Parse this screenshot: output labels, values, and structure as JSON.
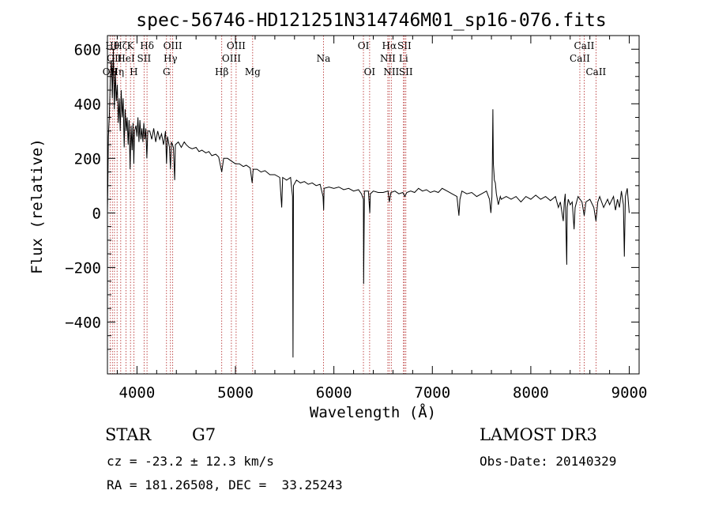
{
  "chart_data": {
    "type": "line",
    "title": "spec-56746-HD121251N314746M01_sp16-076.fits",
    "xlabel": "Wavelength (Å)",
    "ylabel": "Flux (relative)",
    "xlim": [
      3700,
      9100
    ],
    "ylim": [
      -590,
      650
    ],
    "xticks": [
      4000,
      5000,
      6000,
      7000,
      8000,
      9000
    ],
    "yticks": [
      -400,
      -200,
      0,
      200,
      400,
      600
    ],
    "grid": false,
    "series": [
      {
        "points": [
          [
            3700,
            0
          ],
          [
            3705,
            120
          ],
          [
            3710,
            280
          ],
          [
            3720,
            360
          ],
          [
            3730,
            500
          ],
          [
            3740,
            560
          ],
          [
            3750,
            420
          ],
          [
            3760,
            600
          ],
          [
            3770,
            380
          ],
          [
            3780,
            520
          ],
          [
            3790,
            410
          ],
          [
            3800,
            470
          ],
          [
            3810,
            330
          ],
          [
            3820,
            420
          ],
          [
            3830,
            300
          ],
          [
            3840,
            450
          ],
          [
            3850,
            350
          ],
          [
            3860,
            420
          ],
          [
            3870,
            240
          ],
          [
            3880,
            380
          ],
          [
            3890,
            300
          ],
          [
            3900,
            350
          ],
          [
            3910,
            250
          ],
          [
            3920,
            340
          ],
          [
            3930,
            160
          ],
          [
            3940,
            320
          ],
          [
            3950,
            230
          ],
          [
            3960,
            330
          ],
          [
            3968,
            180
          ],
          [
            3975,
            300
          ],
          [
            3990,
            320
          ],
          [
            4000,
            280
          ],
          [
            4010,
            350
          ],
          [
            4020,
            260
          ],
          [
            4030,
            340
          ],
          [
            4040,
            270
          ],
          [
            4050,
            310
          ],
          [
            4060,
            260
          ],
          [
            4070,
            330
          ],
          [
            4080,
            270
          ],
          [
            4090,
            310
          ],
          [
            4100,
            200
          ],
          [
            4110,
            300
          ],
          [
            4130,
            300
          ],
          [
            4150,
            270
          ],
          [
            4170,
            310
          ],
          [
            4190,
            260
          ],
          [
            4210,
            300
          ],
          [
            4230,
            270
          ],
          [
            4250,
            290
          ],
          [
            4270,
            250
          ],
          [
            4290,
            300
          ],
          [
            4300,
            180
          ],
          [
            4310,
            280
          ],
          [
            4330,
            240
          ],
          [
            4340,
            160
          ],
          [
            4350,
            260
          ],
          [
            4370,
            240
          ],
          [
            4383,
            120
          ],
          [
            4390,
            250
          ],
          [
            4420,
            260
          ],
          [
            4450,
            240
          ],
          [
            4480,
            260
          ],
          [
            4500,
            250
          ],
          [
            4530,
            240
          ],
          [
            4560,
            235
          ],
          [
            4600,
            240
          ],
          [
            4630,
            225
          ],
          [
            4660,
            230
          ],
          [
            4700,
            220
          ],
          [
            4730,
            225
          ],
          [
            4760,
            210
          ],
          [
            4800,
            215
          ],
          [
            4830,
            205
          ],
          [
            4861,
            150
          ],
          [
            4880,
            200
          ],
          [
            4920,
            200
          ],
          [
            4960,
            190
          ],
          [
            5000,
            180
          ],
          [
            5040,
            180
          ],
          [
            5080,
            170
          ],
          [
            5110,
            175
          ],
          [
            5150,
            165
          ],
          [
            5170,
            110
          ],
          [
            5180,
            160
          ],
          [
            5220,
            160
          ],
          [
            5260,
            150
          ],
          [
            5300,
            155
          ],
          [
            5350,
            140
          ],
          [
            5400,
            140
          ],
          [
            5450,
            130
          ],
          [
            5470,
            20
          ],
          [
            5480,
            130
          ],
          [
            5520,
            120
          ],
          [
            5560,
            130
          ],
          [
            5580,
            60
          ],
          [
            5585,
            -530
          ],
          [
            5590,
            100
          ],
          [
            5620,
            120
          ],
          [
            5660,
            110
          ],
          [
            5700,
            115
          ],
          [
            5740,
            105
          ],
          [
            5780,
            110
          ],
          [
            5820,
            100
          ],
          [
            5860,
            105
          ],
          [
            5890,
            60
          ],
          [
            5896,
            10
          ],
          [
            5900,
            90
          ],
          [
            5950,
            95
          ],
          [
            6000,
            90
          ],
          [
            6050,
            95
          ],
          [
            6100,
            85
          ],
          [
            6150,
            90
          ],
          [
            6200,
            80
          ],
          [
            6250,
            85
          ],
          [
            6280,
            70
          ],
          [
            6300,
            50
          ],
          [
            6302,
            -260
          ],
          [
            6310,
            80
          ],
          [
            6350,
            80
          ],
          [
            6365,
            0
          ],
          [
            6370,
            70
          ],
          [
            6400,
            80
          ],
          [
            6450,
            75
          ],
          [
            6500,
            75
          ],
          [
            6550,
            80
          ],
          [
            6563,
            40
          ],
          [
            6580,
            75
          ],
          [
            6620,
            80
          ],
          [
            6660,
            70
          ],
          [
            6700,
            75
          ],
          [
            6720,
            60
          ],
          [
            6740,
            75
          ],
          [
            6780,
            80
          ],
          [
            6820,
            75
          ],
          [
            6860,
            90
          ],
          [
            6900,
            80
          ],
          [
            6940,
            85
          ],
          [
            6980,
            75
          ],
          [
            7020,
            80
          ],
          [
            7060,
            75
          ],
          [
            7100,
            90
          ],
          [
            7150,
            80
          ],
          [
            7200,
            70
          ],
          [
            7250,
            60
          ],
          [
            7270,
            -10
          ],
          [
            7280,
            50
          ],
          [
            7300,
            80
          ],
          [
            7350,
            70
          ],
          [
            7400,
            75
          ],
          [
            7450,
            60
          ],
          [
            7500,
            70
          ],
          [
            7550,
            80
          ],
          [
            7580,
            50
          ],
          [
            7595,
            0
          ],
          [
            7605,
            60
          ],
          [
            7610,
            200
          ],
          [
            7615,
            380
          ],
          [
            7620,
            180
          ],
          [
            7625,
            150
          ],
          [
            7630,
            120
          ],
          [
            7640,
            110
          ],
          [
            7650,
            70
          ],
          [
            7670,
            30
          ],
          [
            7690,
            60
          ],
          [
            7700,
            50
          ],
          [
            7750,
            60
          ],
          [
            7800,
            50
          ],
          [
            7850,
            60
          ],
          [
            7900,
            40
          ],
          [
            7950,
            60
          ],
          [
            8000,
            50
          ],
          [
            8050,
            65
          ],
          [
            8100,
            50
          ],
          [
            8150,
            60
          ],
          [
            8200,
            45
          ],
          [
            8250,
            60
          ],
          [
            8280,
            20
          ],
          [
            8300,
            40
          ],
          [
            8330,
            -30
          ],
          [
            8340,
            40
          ],
          [
            8350,
            70
          ],
          [
            8365,
            -190
          ],
          [
            8370,
            20
          ],
          [
            8380,
            50
          ],
          [
            8400,
            30
          ],
          [
            8420,
            40
          ],
          [
            8440,
            -60
          ],
          [
            8450,
            20
          ],
          [
            8480,
            60
          ],
          [
            8520,
            40
          ],
          [
            8542,
            -10
          ],
          [
            8560,
            40
          ],
          [
            8600,
            50
          ],
          [
            8640,
            20
          ],
          [
            8662,
            -30
          ],
          [
            8680,
            40
          ],
          [
            8700,
            60
          ],
          [
            8740,
            20
          ],
          [
            8780,
            50
          ],
          [
            8800,
            30
          ],
          [
            8840,
            60
          ],
          [
            8860,
            10
          ],
          [
            8880,
            50
          ],
          [
            8900,
            20
          ],
          [
            8920,
            80
          ],
          [
            8940,
            30
          ],
          [
            8950,
            -160
          ],
          [
            8960,
            60
          ],
          [
            8980,
            90
          ],
          [
            9000,
            0
          ]
        ]
      }
    ],
    "lines": [
      {
        "wavelength": 3727,
        "label": "OII",
        "row": 3
      },
      {
        "wavelength": 3750,
        "label": "Hθ",
        "row": 1
      },
      {
        "wavelength": 3771,
        "label": "OII",
        "row": 2
      },
      {
        "wavelength": 3798,
        "label": "Hη",
        "row": 3
      },
      {
        "wavelength": 3835,
        "label": "Hζ",
        "row": 1
      },
      {
        "wavelength": 3889,
        "label": "HeI",
        "row": 2
      },
      {
        "wavelength": 3934,
        "label": "K",
        "row": 1
      },
      {
        "wavelength": 3968,
        "label": "H",
        "row": 3
      },
      {
        "wavelength": 4072,
        "label": "SII",
        "row": 2
      },
      {
        "wavelength": 4102,
        "label": "Hδ",
        "row": 1
      },
      {
        "wavelength": 4300,
        "label": "G",
        "row": 3
      },
      {
        "wavelength": 4340,
        "label": "Hγ",
        "row": 2
      },
      {
        "wavelength": 4363,
        "label": "OIII",
        "row": 1
      },
      {
        "wavelength": 4861,
        "label": "Hβ",
        "row": 3
      },
      {
        "wavelength": 4959,
        "label": "OIII",
        "row": 2
      },
      {
        "wavelength": 5007,
        "label": "OIII",
        "row": 1
      },
      {
        "wavelength": 5175,
        "label": "Mg",
        "row": 3
      },
      {
        "wavelength": 5894,
        "label": "Na",
        "row": 2
      },
      {
        "wavelength": 6300,
        "label": "OI",
        "row": 1
      },
      {
        "wavelength": 6363,
        "label": "OI",
        "row": 3
      },
      {
        "wavelength": 6548,
        "label": "NII",
        "row": 2
      },
      {
        "wavelength": 6563,
        "label": "Hα",
        "row": 1
      },
      {
        "wavelength": 6583,
        "label": "NII",
        "row": 3
      },
      {
        "wavelength": 6707,
        "label": "Li",
        "row": 2
      },
      {
        "wavelength": 6716,
        "label": "SII",
        "row": 1
      },
      {
        "wavelength": 6731,
        "label": "SII",
        "row": 3
      },
      {
        "wavelength": 8498,
        "label": "CaII",
        "row": 2
      },
      {
        "wavelength": 8542,
        "label": "CaII",
        "row": 1
      },
      {
        "wavelength": 8662,
        "label": "CaII",
        "row": 3
      }
    ]
  },
  "info": {
    "object_class": "STAR",
    "subclass": "G7",
    "survey": "LAMOST DR3",
    "redshift": "cz = -23.2 ± 12.3 km/s",
    "obs_date": "Obs-Date: 20140329",
    "coords": "RA = 181.26508, DEC =  33.25243"
  },
  "colors": {
    "spectrum": "#000000",
    "line_markers": "#b22222",
    "axes": "#000000"
  }
}
